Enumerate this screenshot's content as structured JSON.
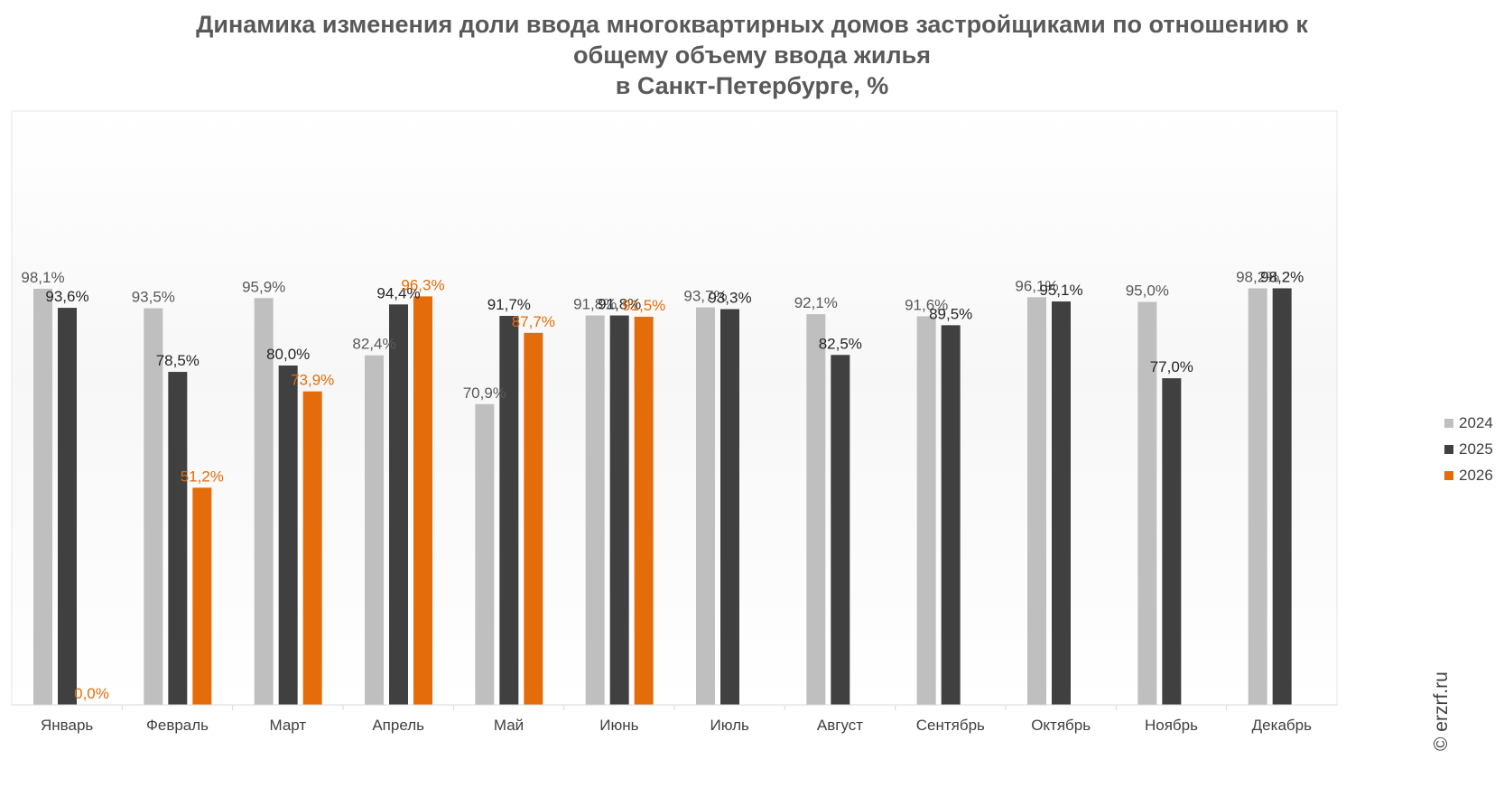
{
  "title_lines": [
    "Динамика изменения доли ввода многоквартирных домов застройщиками по отношению к",
    "общему объему ввода жилья",
    "в Санкт-Петербурге, %"
  ],
  "credit": "© erzrf.ru",
  "chart_data": {
    "type": "bar",
    "title": "Динамика изменения доли ввода многоквартирных домов застройщиками по отношению к общему объему ввода жилья в Санкт-Петербурге, %",
    "categories": [
      "Январь",
      "Февраль",
      "Март",
      "Апрель",
      "Май",
      "Июнь",
      "Июль",
      "Август",
      "Сентябрь",
      "Октябрь",
      "Ноябрь",
      "Декабрь"
    ],
    "ylim": [
      0,
      140
    ],
    "grid": false,
    "legend_position": "right",
    "series": [
      {
        "name": "2024",
        "color": "#bfbfbf",
        "label_color": "#595959",
        "values": [
          98.1,
          93.5,
          95.9,
          82.4,
          70.9,
          91.8,
          93.7,
          92.1,
          91.6,
          96.1,
          95.0,
          98.2
        ],
        "labels": [
          "98,1%",
          "93,5%",
          "95,9%",
          "82,4%",
          "70,9%",
          "91,8%",
          "93,7%",
          "92,1%",
          "91,6%",
          "96,1%",
          "95,0%",
          "98,2%"
        ]
      },
      {
        "name": "2025",
        "color": "#404040",
        "label_color": "#262626",
        "values": [
          93.6,
          78.5,
          80.0,
          94.4,
          91.7,
          91.8,
          93.3,
          82.5,
          89.5,
          95.1,
          77.0,
          98.2
        ],
        "labels": [
          "93,6%",
          "78,5%",
          "80,0%",
          "94,4%",
          "91,7%",
          "91,8%",
          "93,3%",
          "82,5%",
          "89,5%",
          "95,1%",
          "77,0%",
          "98,2%"
        ]
      },
      {
        "name": "2026",
        "color": "#e46c0a",
        "label_color": "#e46c0a",
        "values": [
          0.0,
          51.2,
          73.9,
          96.3,
          87.7,
          91.5,
          null,
          null,
          null,
          null,
          null,
          null
        ],
        "labels": [
          "0,0%",
          "51,2%",
          "73,9%",
          "96,3%",
          "87,7%",
          "91,5%",
          null,
          null,
          null,
          null,
          null,
          null
        ]
      }
    ]
  }
}
